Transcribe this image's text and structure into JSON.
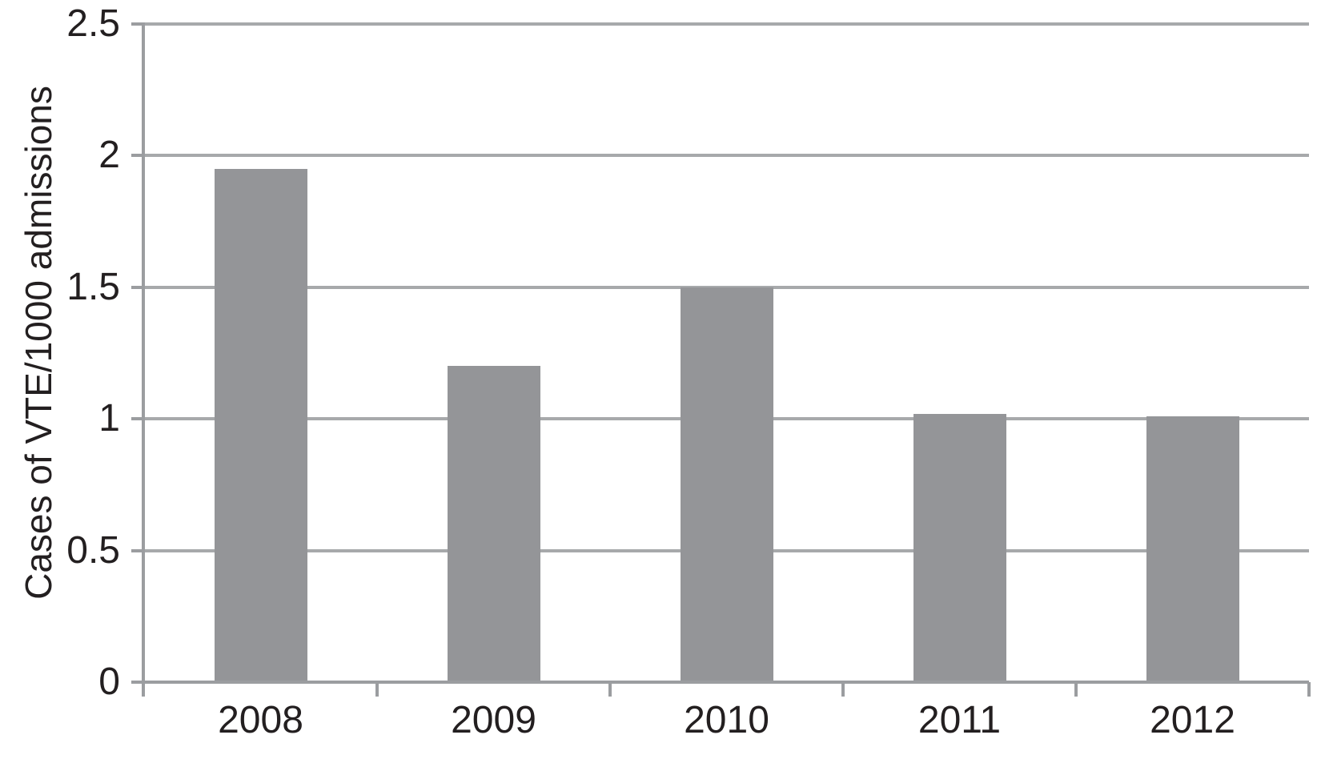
{
  "chart_data": {
    "type": "bar",
    "title": "",
    "categories": [
      "2008",
      "2009",
      "2010",
      "2011",
      "2012"
    ],
    "values": [
      1.95,
      1.2,
      1.5,
      1.02,
      1.01
    ],
    "xlabel": "",
    "ylabel": "Cases of VTE/1000 admissions",
    "ylim": [
      0,
      2.5
    ],
    "yticks": [
      0,
      0.5,
      1,
      1.5,
      2,
      2.5
    ],
    "ytick_labels": [
      "0",
      "0.5",
      "1",
      "1.5",
      "2",
      "2.5"
    ],
    "grid": "horizontal gridlines at each y tick, plot framed by left and bottom axes only",
    "legend_position": "none",
    "colors": {
      "bar": "#949598",
      "gridline": "#a7a9ab",
      "axis": "#9b9da0",
      "tick": "#9b9da0",
      "text": "#231f20",
      "background": "#ffffff"
    }
  }
}
